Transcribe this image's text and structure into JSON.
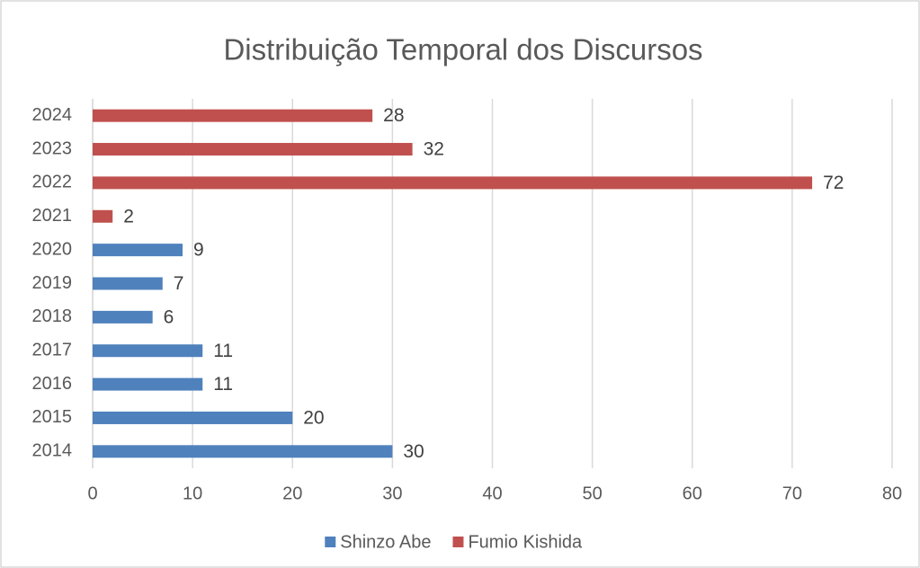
{
  "chart_data": {
    "type": "bar",
    "orientation": "horizontal",
    "title": "Distribuição Temporal dos Discursos",
    "categories": [
      "2014",
      "2015",
      "2016",
      "2017",
      "2018",
      "2019",
      "2020",
      "2021",
      "2022",
      "2023",
      "2024"
    ],
    "series": [
      {
        "name": "Shinzo Abe",
        "color": "#4f81bd",
        "values": [
          30,
          20,
          11,
          11,
          6,
          7,
          9,
          null,
          null,
          null,
          null
        ]
      },
      {
        "name": "Fumio Kishida",
        "color": "#c0504d",
        "values": [
          null,
          null,
          null,
          null,
          null,
          null,
          null,
          2,
          72,
          32,
          28
        ]
      }
    ],
    "xlim": [
      0,
      80
    ],
    "xticks": [
      0,
      10,
      20,
      30,
      40,
      50,
      60,
      70,
      80
    ],
    "grid": true,
    "legend": "bottom"
  }
}
